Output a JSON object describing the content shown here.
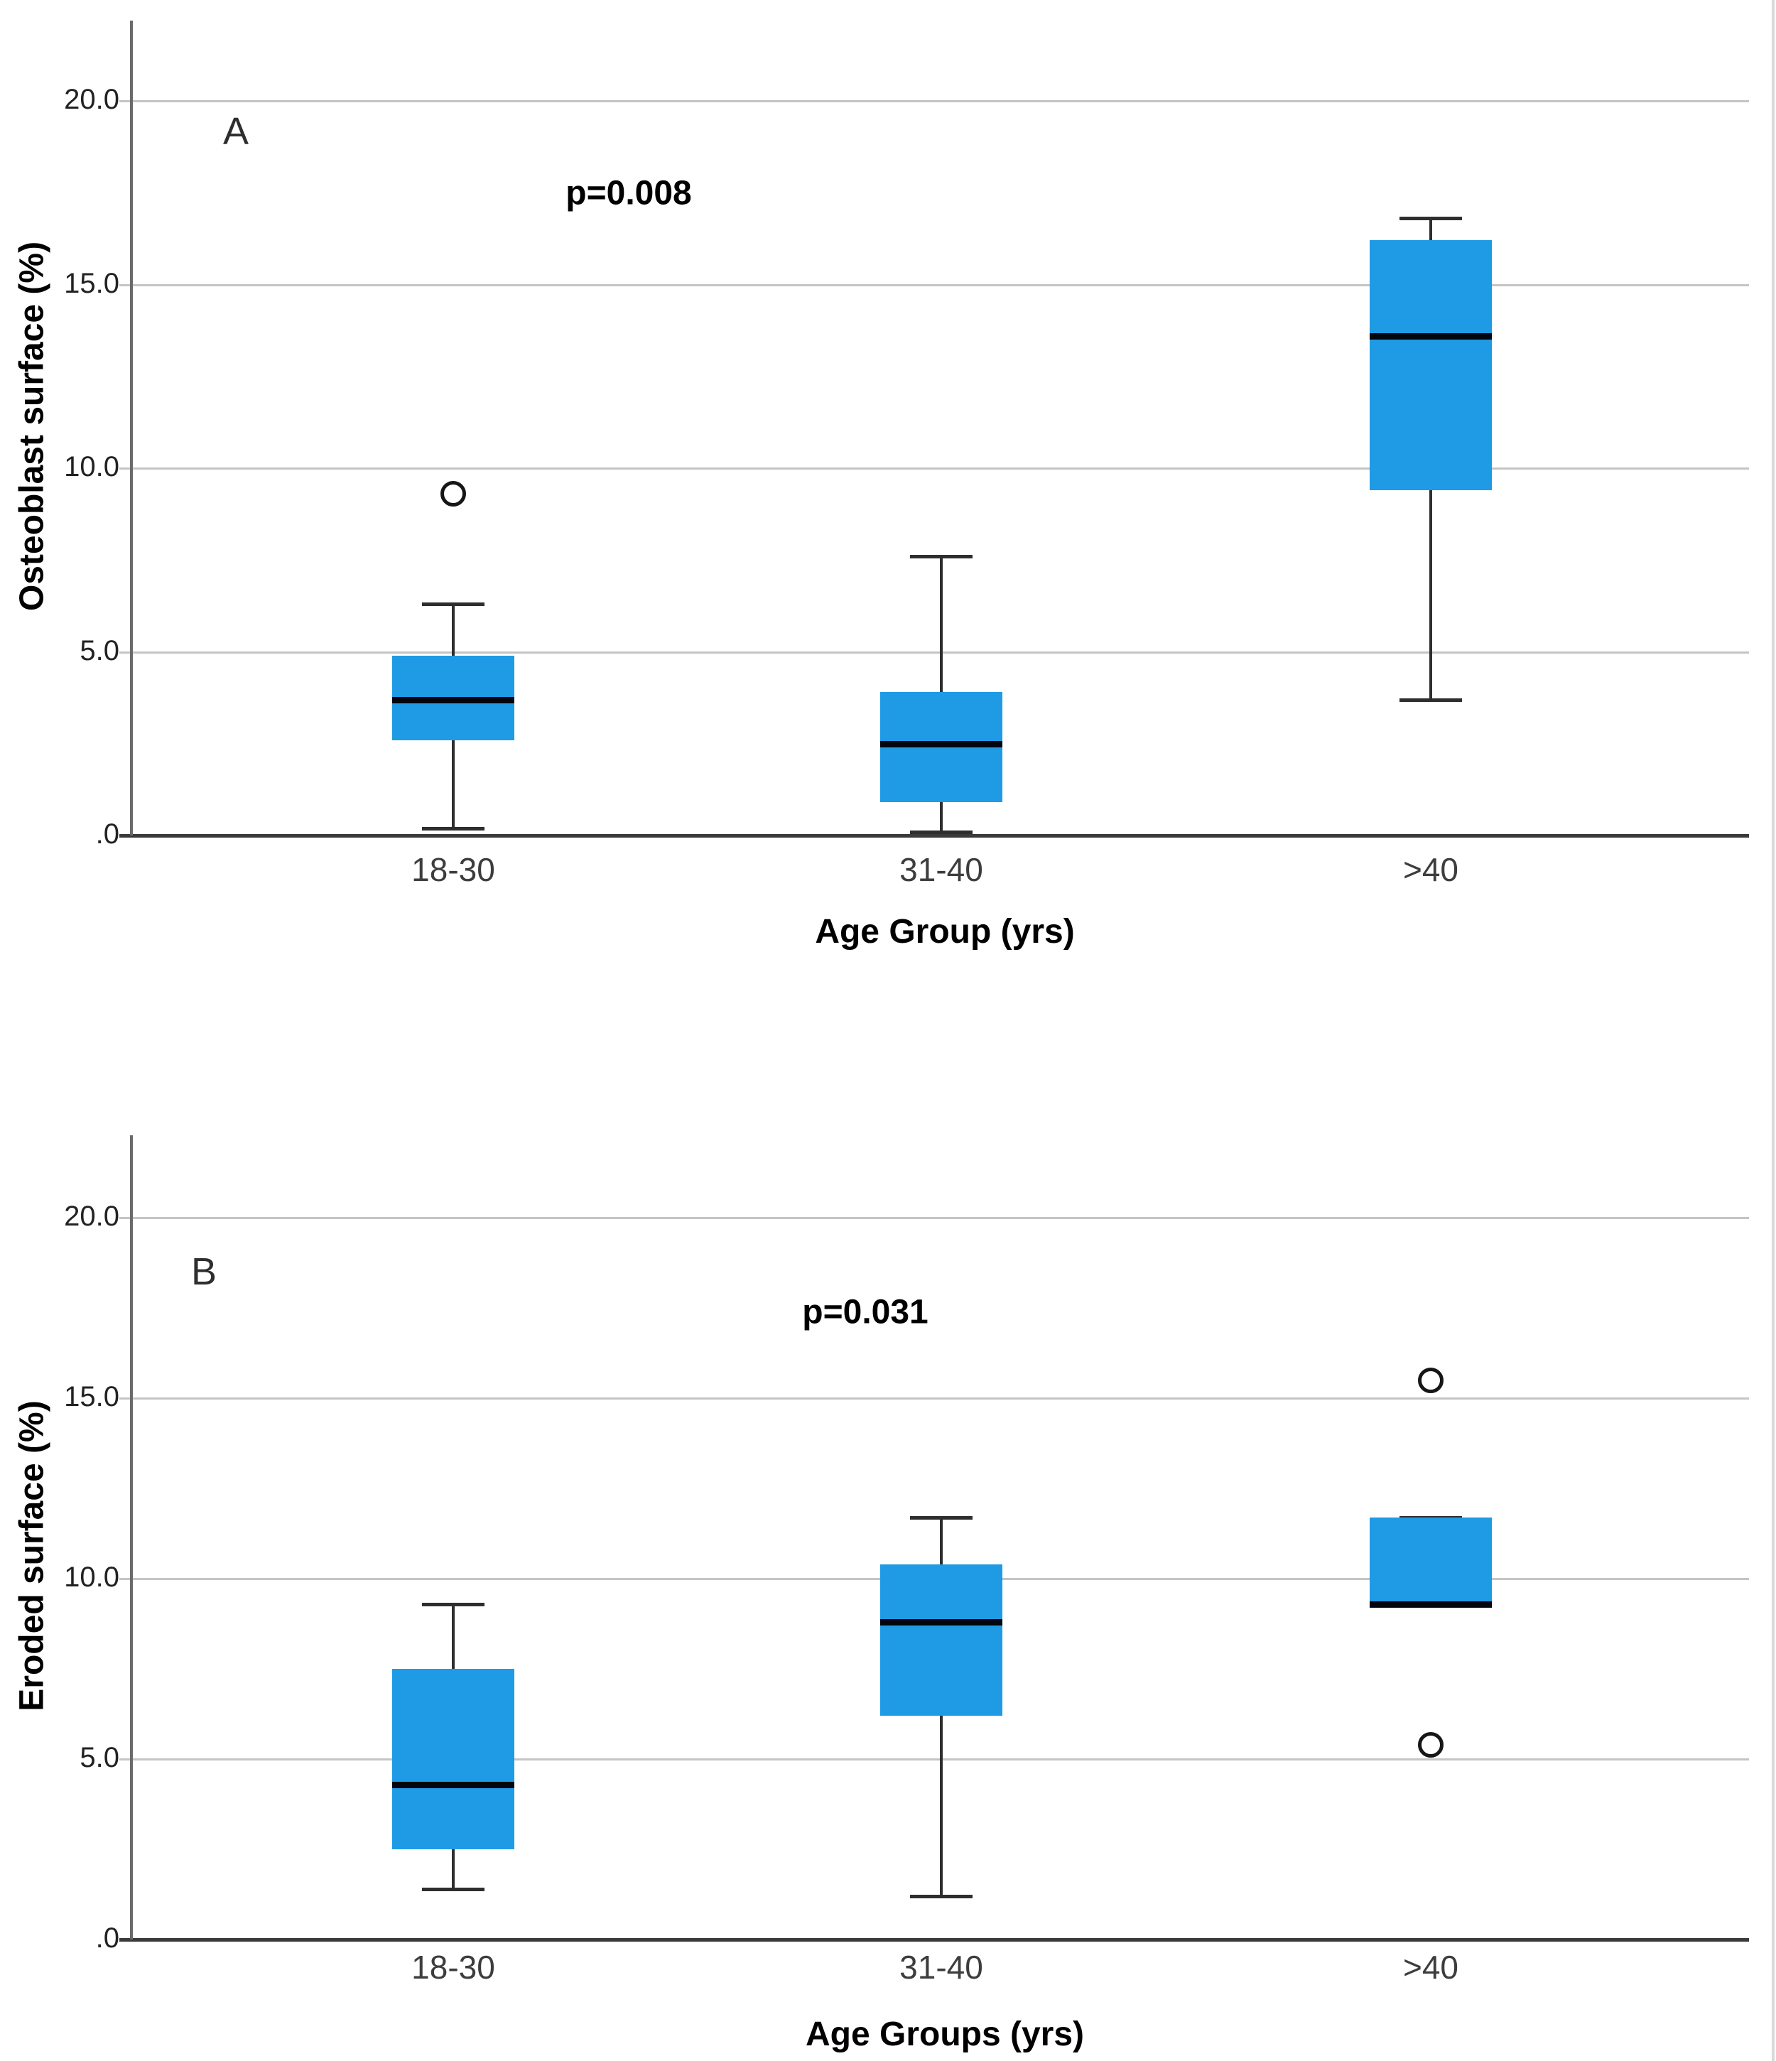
{
  "figure": {
    "background": "#ffffff",
    "colors": {
      "box_fill": "#1e9be4",
      "median_line": "#03060e",
      "whisker": "#2e2e2e",
      "gridline": "#c4c4c4",
      "axis_line": "#3a3a3a",
      "outlier_stroke": "#161616"
    }
  },
  "chart_data": [
    {
      "type": "boxplot",
      "panel_label": "A",
      "annotation": "p=0.008",
      "ylabel": "Osteoblast surface (%)",
      "xlabel": "Age Group (yrs)",
      "categories": [
        "18-30",
        "31-40",
        ">40"
      ],
      "ytick_labels": [
        ".0",
        "5.0",
        "10.0",
        "15.0",
        "20.0"
      ],
      "ytick_values": [
        0,
        5,
        10,
        15,
        20
      ],
      "ylim": [
        0,
        22.2
      ],
      "grid": true,
      "legend": "none",
      "boxes": [
        {
          "category": "18-30",
          "whisker_low": 0.2,
          "q1": 2.6,
          "median": 3.7,
          "q3": 4.9,
          "whisker_high": 6.3,
          "outliers": [
            9.3
          ]
        },
        {
          "category": "31-40",
          "whisker_low": 0.1,
          "q1": 0.9,
          "median": 2.5,
          "q3": 3.9,
          "whisker_high": 7.6,
          "outliers": []
        },
        {
          "category": ">40",
          "whisker_low": 3.7,
          "q1": 9.4,
          "median": 13.6,
          "q3": 16.2,
          "whisker_high": 16.8,
          "outliers": []
        }
      ]
    },
    {
      "type": "boxplot",
      "panel_label": "B",
      "annotation": "p=0.031",
      "ylabel": "Eroded surface (%)",
      "xlabel": "Age Groups (yrs)",
      "categories": [
        "18-30",
        "31-40",
        ">40"
      ],
      "ytick_labels": [
        ".0",
        "5.0",
        "10.0",
        "15.0",
        "20.0"
      ],
      "ytick_values": [
        0,
        5,
        10,
        15,
        20
      ],
      "ylim": [
        0,
        22.3
      ],
      "grid": true,
      "legend": "none",
      "boxes": [
        {
          "category": "18-30",
          "whisker_low": 1.4,
          "q1": 2.5,
          "median": 4.3,
          "q3": 7.5,
          "whisker_high": 9.3,
          "outliers": []
        },
        {
          "category": "31-40",
          "whisker_low": 1.2,
          "q1": 6.2,
          "median": 8.8,
          "q3": 10.4,
          "whisker_high": 11.7,
          "outliers": []
        },
        {
          "category": ">40",
          "whisker_low": null,
          "q1": 9.2,
          "median": 9.3,
          "q3": 11.7,
          "whisker_high": 11.7,
          "outliers": [
            15.5,
            5.4
          ]
        }
      ]
    }
  ]
}
